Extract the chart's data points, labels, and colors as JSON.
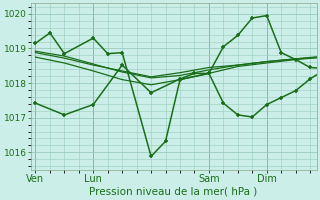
{
  "background_color": "#cceee8",
  "grid_color": "#99ccbb",
  "line_color": "#1a6e1a",
  "marker_color": "#1a6e1a",
  "xlabel": "Pression niveau de la mer( hPa )",
  "ylim": [
    1015.5,
    1020.3
  ],
  "yticks": [
    1016,
    1017,
    1018,
    1019,
    1020
  ],
  "day_labels": [
    "Ven",
    "Lun",
    "Sam",
    "Dim"
  ],
  "day_positions": [
    0,
    36,
    108,
    144
  ],
  "xlim": [
    -3,
    175
  ],
  "vlines": [
    0,
    36,
    108,
    144
  ],
  "lines": [
    {
      "x": [
        0,
        9,
        18,
        36,
        45,
        54,
        72,
        81,
        90,
        108,
        117,
        126,
        135,
        144,
        153,
        162,
        171,
        180
      ],
      "y": [
        1019.15,
        1019.45,
        1018.85,
        1019.3,
        1018.85,
        1018.88,
        1015.88,
        1016.32,
        1018.1,
        1018.28,
        1019.05,
        1019.38,
        1019.88,
        1019.95,
        1018.88,
        1018.68,
        1018.45,
        1018.42
      ],
      "marker": "+",
      "lw": 1.1,
      "ms": 3.5
    },
    {
      "x": [
        0,
        18,
        36,
        54,
        72,
        90,
        108,
        126,
        144,
        162,
        180
      ],
      "y": [
        1018.75,
        1018.58,
        1018.35,
        1018.1,
        1017.95,
        1018.1,
        1018.28,
        1018.48,
        1018.58,
        1018.68,
        1018.75
      ],
      "marker": null,
      "lw": 0.9,
      "ms": 0
    },
    {
      "x": [
        0,
        18,
        36,
        54,
        72,
        90,
        108,
        126,
        144,
        162,
        180
      ],
      "y": [
        1018.88,
        1018.72,
        1018.52,
        1018.35,
        1018.18,
        1018.3,
        1018.45,
        1018.52,
        1018.62,
        1018.7,
        1018.78
      ],
      "marker": null,
      "lw": 0.9,
      "ms": 0
    },
    {
      "x": [
        0,
        18,
        36,
        54,
        72,
        90,
        108,
        126,
        144,
        162,
        180
      ],
      "y": [
        1018.92,
        1018.78,
        1018.55,
        1018.32,
        1018.15,
        1018.22,
        1018.38,
        1018.52,
        1018.62,
        1018.7,
        1018.75
      ],
      "marker": null,
      "lw": 0.9,
      "ms": 0
    },
    {
      "x": [
        0,
        18,
        36,
        54,
        72,
        90,
        99,
        108,
        117,
        126,
        135,
        144,
        153,
        162,
        171,
        180
      ],
      "y": [
        1017.42,
        1017.08,
        1017.38,
        1018.52,
        1017.72,
        1018.12,
        1018.28,
        1018.28,
        1017.42,
        1017.08,
        1017.02,
        1017.38,
        1017.58,
        1017.78,
        1018.12,
        1018.38
      ],
      "marker": "+",
      "lw": 1.1,
      "ms": 3.5
    }
  ]
}
